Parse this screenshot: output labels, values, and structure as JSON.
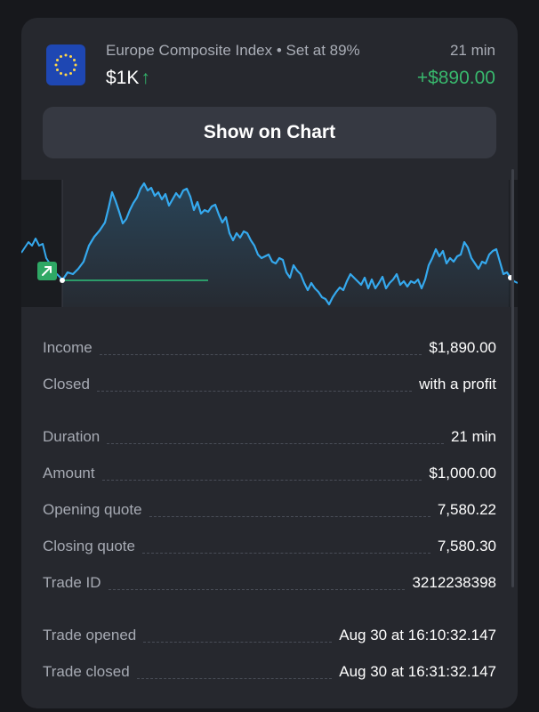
{
  "trade": {
    "asset": "Europe Composite Index • Set at 89%",
    "amount": "$1K",
    "direction_icon": "arrow-up-icon",
    "duration_short": "21 min",
    "profit": "+$890.00",
    "flag_icon": "eu-flag-icon"
  },
  "buttons": {
    "show_on_chart": "Show on Chart"
  },
  "chart_colors": {
    "price_line": "#35a9ee",
    "open_line": "#2fbf7a",
    "area": "#35a9ee",
    "profit_color": "#38b86d"
  },
  "details": [
    {
      "label": "Income",
      "value": "$1,890.00"
    },
    {
      "label": "Closed",
      "value": "with a profit"
    },
    {
      "label": "Duration",
      "value": "21 min"
    },
    {
      "label": "Amount",
      "value": "$1,000.00"
    },
    {
      "label": "Opening quote",
      "value": "7,580.22"
    },
    {
      "label": "Closing quote",
      "value": "7,580.30"
    },
    {
      "label": "Trade ID",
      "value": "3212238398"
    },
    {
      "label": "Trade opened",
      "value": "Aug 30 at 16:10:32.147"
    },
    {
      "label": "Trade closed",
      "value": "Aug 30 at 16:31:32.147"
    }
  ]
}
